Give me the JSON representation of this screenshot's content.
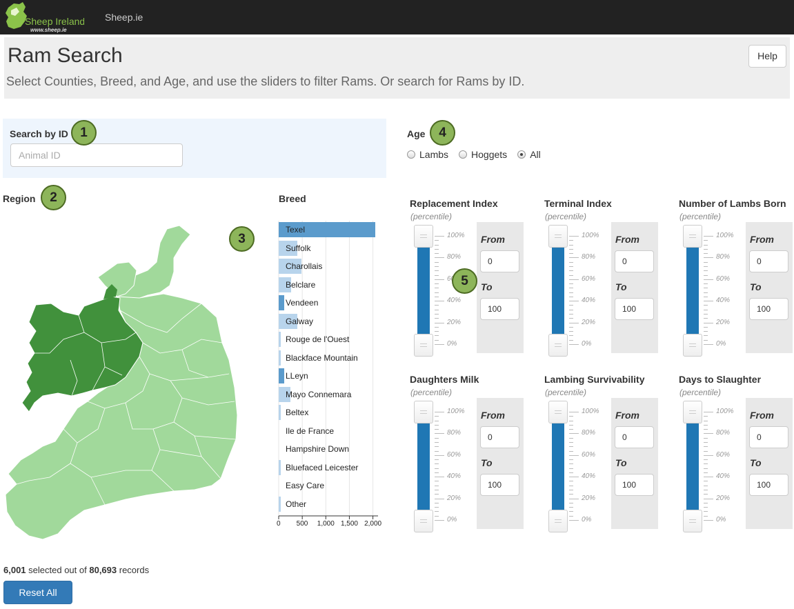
{
  "navbar": {
    "logo_text": "Sheep Ireland",
    "logo_url": "www.sheep.ie",
    "link": "Sheep.ie"
  },
  "header": {
    "title": "Ram Search",
    "subtitle": "Select Counties, Breed, and Age, and use the sliders to filter Rams. Or search for Rams by ID.",
    "help_label": "Help"
  },
  "search": {
    "label": "Search by ID",
    "placeholder": "Animal ID"
  },
  "age": {
    "label": "Age",
    "options": [
      "Lambs",
      "Hoggets",
      "All"
    ],
    "selected": "All"
  },
  "region": {
    "label": "Region"
  },
  "badges": [
    "1",
    "2",
    "3",
    "4",
    "5"
  ],
  "breed": {
    "label": "Breed",
    "items": [
      {
        "name": "Texel",
        "value": 2050,
        "selected": true
      },
      {
        "name": "Suffolk",
        "value": 400,
        "selected": false
      },
      {
        "name": "Charollais",
        "value": 490,
        "selected": false
      },
      {
        "name": "Belclare",
        "value": 270,
        "selected": false
      },
      {
        "name": "Vendeen",
        "value": 110,
        "selected": true
      },
      {
        "name": "Galway",
        "value": 390,
        "selected": false
      },
      {
        "name": "Rouge de l'Ouest",
        "value": 30,
        "selected": false
      },
      {
        "name": "Blackface Mountain",
        "value": 40,
        "selected": false
      },
      {
        "name": "LLeyn",
        "value": 120,
        "selected": true
      },
      {
        "name": "Mayo Connemara",
        "value": 250,
        "selected": false
      },
      {
        "name": "Beltex",
        "value": 50,
        "selected": false
      },
      {
        "name": "Ile de France",
        "value": 0,
        "selected": false
      },
      {
        "name": "Hampshire Down",
        "value": 0,
        "selected": false
      },
      {
        "name": "Bluefaced Leicester",
        "value": 30,
        "selected": false
      },
      {
        "name": "Easy Care",
        "value": 0,
        "selected": false
      },
      {
        "name": "Other",
        "value": 40,
        "selected": false
      }
    ],
    "ticks": [
      "0",
      "500",
      "1,000",
      "1,500",
      "2,000"
    ]
  },
  "sliders": {
    "subtitle": "(percentile)",
    "from_label": "From",
    "to_label": "To",
    "ticks": [
      "100%",
      "80%",
      "60%",
      "40%",
      "20%",
      "0%"
    ],
    "items": [
      {
        "title": "Replacement Index",
        "from": "0",
        "to": "100"
      },
      {
        "title": "Terminal Index",
        "from": "0",
        "to": "100"
      },
      {
        "title": "Number of Lambs Born",
        "from": "0",
        "to": "100"
      },
      {
        "title": "Daughters Milk",
        "from": "0",
        "to": "100"
      },
      {
        "title": "Lambing Survivability",
        "from": "0",
        "to": "100"
      },
      {
        "title": "Days to Slaughter",
        "from": "0",
        "to": "100"
      }
    ]
  },
  "summary": {
    "selected": "6,001",
    "middle": "selected out of",
    "total": "80,693",
    "suffix": "records"
  },
  "reset_label": "Reset All",
  "colors": {
    "map_light": "#a1d99b",
    "map_dark": "#41913c",
    "bar_selected": "#5b9bcc",
    "bar_unselected": "#b8d4ec",
    "slider_fill": "#1f77b4",
    "button": "#337ab7"
  }
}
